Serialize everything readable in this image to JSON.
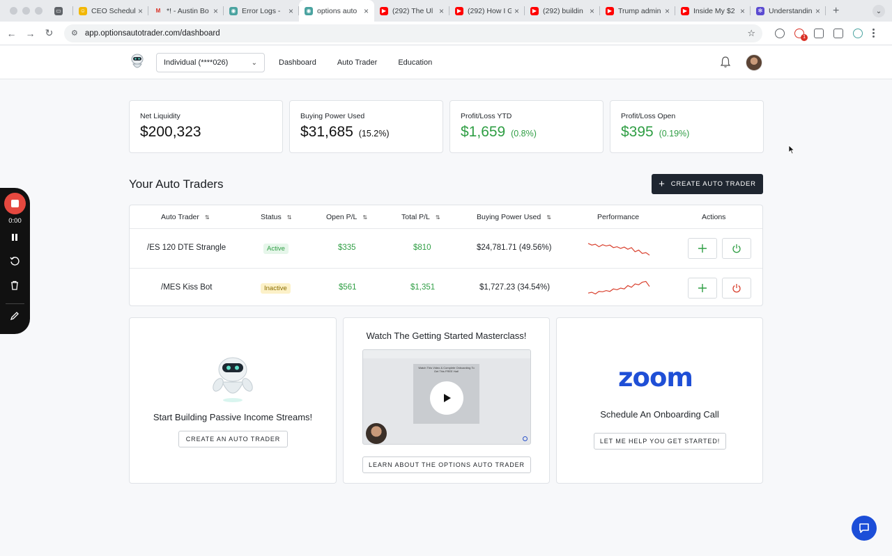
{
  "browser": {
    "tabs": [
      {
        "label": "",
        "icon": "window-icon",
        "color": "#5f6368"
      },
      {
        "label": "CEO Schedule",
        "icon": "emoji-icon",
        "color": "#f2b705"
      },
      {
        "label": "*! - Austin Bo",
        "icon": "gmail-icon",
        "color": "#d93025"
      },
      {
        "label": "Error Logs - ",
        "icon": "robot-icon",
        "color": "#4aa3a0"
      },
      {
        "label": "options auto",
        "icon": "robot-icon",
        "color": "#4aa3a0",
        "active": true
      },
      {
        "label": "(292) The Ul",
        "icon": "youtube-icon",
        "color": "#ff0000"
      },
      {
        "label": "(292) How I G",
        "icon": "youtube-icon",
        "color": "#ff0000"
      },
      {
        "label": "(292) buildin",
        "icon": "youtube-icon",
        "color": "#ff0000"
      },
      {
        "label": "Trump admin",
        "icon": "youtube-icon",
        "color": "#ff0000"
      },
      {
        "label": "Inside My $2",
        "icon": "youtube-icon",
        "color": "#ff0000"
      },
      {
        "label": "Understandin",
        "icon": "gear-icon",
        "color": "#5b4bd1"
      }
    ],
    "url": "app.optionsautotrader.com/dashboard"
  },
  "header": {
    "account_label": "Individual (****026)",
    "nav": [
      "Dashboard",
      "Auto Trader",
      "Education"
    ]
  },
  "stats": [
    {
      "label": "Net Liquidity",
      "value": "$200,323",
      "pct": "",
      "green": false
    },
    {
      "label": "Buying Power Used",
      "value": "$31,685",
      "pct": "(15.2%)",
      "green": false
    },
    {
      "label": "Profit/Loss YTD",
      "value": "$1,659",
      "pct": "(0.8%)",
      "green": true
    },
    {
      "label": "Profit/Loss Open",
      "value": "$395",
      "pct": "(0.19%)",
      "green": true
    }
  ],
  "traders": {
    "title": "Your Auto Traders",
    "create_label": "CREATE AUTO TRADER",
    "columns": [
      "Auto Trader",
      "Status",
      "Open P/L",
      "Total P/L",
      "Buying Power Used",
      "Performance",
      "Actions"
    ],
    "rows": [
      {
        "name": "/ES 120 DTE Strangle",
        "status": "Active",
        "open_pl": "$335",
        "total_pl": "$810",
        "bp_used": "$24,781.71 (49.56%)",
        "performance": [
          0.8,
          0.7,
          0.75,
          0.6,
          0.72,
          0.65,
          0.7,
          0.55,
          0.6,
          0.5,
          0.58,
          0.45,
          0.55,
          0.3,
          0.4,
          0.2,
          0.25,
          0.1
        ]
      },
      {
        "name": "/MES Kiss Bot",
        "status": "Inactive",
        "open_pl": "$561",
        "total_pl": "$1,351",
        "bp_used": "$1,727.23 (34.54%)",
        "performance": [
          0.2,
          0.25,
          0.15,
          0.3,
          0.28,
          0.35,
          0.3,
          0.45,
          0.4,
          0.5,
          0.45,
          0.65,
          0.55,
          0.75,
          0.7,
          0.85,
          0.9,
          0.6
        ]
      }
    ]
  },
  "cards": {
    "passive": {
      "text": "Start Building Passive Income Streams!",
      "button": "CREATE AN AUTO TRADER"
    },
    "video": {
      "title": "Watch The Getting Started Masterclass!",
      "thumb_text": "Watch This Video & Complete Onboarding To Get This FREE Hat!",
      "button": "LEARN ABOUT THE OPTIONS AUTO TRADER"
    },
    "zoom": {
      "logo": "zoom",
      "text": "Schedule An Onboarding Call",
      "button": "LET ME HELP YOU GET STARTED!"
    }
  },
  "recorder": {
    "time": "0:00"
  },
  "colors": {
    "green": "#2f9e44",
    "spark_red": "#d9412f",
    "dark_button": "#1f2630",
    "zoom_blue": "#1f4fd6"
  }
}
